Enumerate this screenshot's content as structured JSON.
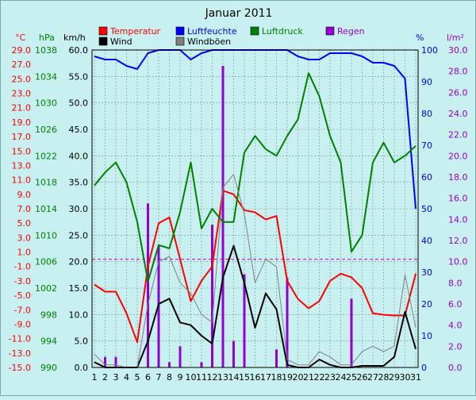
{
  "chart_data": {
    "type": "line",
    "title": "Januar 2011",
    "x": [
      1,
      2,
      3,
      4,
      5,
      6,
      7,
      8,
      9,
      10,
      11,
      12,
      13,
      14,
      15,
      16,
      17,
      18,
      19,
      20,
      21,
      22,
      23,
      24,
      25,
      26,
      27,
      28,
      29,
      30,
      31
    ],
    "axes": {
      "temperature": {
        "unit": "°C",
        "ylim": [
          -15.0,
          29.0
        ],
        "step": 4.0,
        "ticks": [
          "29.0",
          "27.0",
          "25.0",
          "23.0",
          "21.0",
          "19.0",
          "17.0",
          "15.0",
          "13.0",
          "11.0",
          "9.0",
          "7.0",
          "5.0",
          "3.0",
          "1.0",
          "-1.0",
          "-3.0",
          "-5.0",
          "-7.0",
          "-9.0",
          "-11.0",
          "-13.0",
          "-15.0"
        ]
      },
      "pressure": {
        "unit": "hPa",
        "ylim": [
          990,
          1038
        ],
        "ticks": [
          "1038",
          "1034",
          "1030",
          "1026",
          "1022",
          "1018",
          "1014",
          "1010",
          "1006",
          "1002",
          "998",
          "994",
          "990"
        ]
      },
      "wind": {
        "unit": "km/h",
        "ylim": [
          0.0,
          60.0
        ],
        "ticks": [
          "60.0",
          "55.0",
          "50.0",
          "45.0",
          "40.0",
          "35.0",
          "30.0",
          "25.0",
          "20.0",
          "15.0",
          "10.0",
          "5.0",
          "0.0"
        ]
      },
      "humidity": {
        "unit": "%",
        "ylim": [
          0,
          100
        ],
        "ticks": [
          "100",
          "90",
          "80",
          "70",
          "60",
          "50",
          "40",
          "30",
          "20",
          "10",
          "0"
        ]
      },
      "rain": {
        "unit": "l/m²",
        "ylim": [
          0.0,
          30.0
        ],
        "ticks": [
          "30.0",
          "28.0",
          "26.0",
          "24.0",
          "22.0",
          "20.0",
          "18.0",
          "16.0",
          "14.0",
          "12.0",
          "10.0",
          "8.0",
          "6.0",
          "4.0",
          "2.0",
          "0.0"
        ]
      }
    },
    "legend": [
      {
        "name": "Temperatur",
        "color": "#ff0000"
      },
      {
        "name": "Luftfeuchte",
        "color": "#0000ff"
      },
      {
        "name": "Luftdruck",
        "color": "#008000"
      },
      {
        "name": "Regen",
        "color": "#9400d3"
      },
      {
        "name": "Wind",
        "color": "#000000"
      },
      {
        "name": "Windböen",
        "color": "#808080"
      }
    ],
    "series": [
      {
        "name": "Temperatur",
        "axis": "temperature",
        "color": "#ff0000",
        "values": [
          -3.5,
          -4.5,
          -4.5,
          -7.5,
          -11.5,
          -1.0,
          5.0,
          5.8,
          0.0,
          -5.8,
          -3.0,
          -1.0,
          9.5,
          9.0,
          6.8,
          6.5,
          5.5,
          6.0,
          -3.0,
          -5.5,
          -6.8,
          -5.8,
          -3.0,
          -2.0,
          -2.5,
          -4.0,
          -7.5,
          -7.7,
          -7.8,
          -7.8,
          -2.0
        ]
      },
      {
        "name": "Luftfeuchte",
        "axis": "humidity",
        "color": "#0000ff",
        "values": [
          98,
          97,
          97,
          95,
          94,
          99,
          100,
          100,
          100,
          97,
          99,
          100,
          100,
          100,
          100,
          100,
          100,
          100,
          100,
          98,
          97,
          97,
          99,
          99,
          99,
          98,
          96,
          96,
          95,
          91,
          50
        ]
      },
      {
        "name": "Luftdruck",
        "axis": "pressure",
        "color": "#008000",
        "values": [
          1017.5,
          1019.5,
          1021,
          1018,
          1012,
          1003,
          1008.5,
          1008,
          1013.5,
          1021,
          1011,
          1014,
          1012,
          1012,
          1022.5,
          1025,
          1023,
          1022,
          1025,
          1027.5,
          1034.5,
          1031,
          1025,
          1021,
          1007.5,
          1010,
          1021,
          1024,
          1021,
          1022,
          1023.5
        ]
      },
      {
        "name": "Wind",
        "axis": "wind",
        "color": "#000000",
        "values": [
          1.0,
          0.0,
          0.0,
          0.0,
          0.0,
          5.0,
          12.0,
          13.0,
          8.5,
          8.0,
          6.0,
          4.5,
          17.0,
          23.0,
          16.0,
          7.5,
          14.0,
          11.0,
          0.5,
          0.0,
          0.0,
          1.5,
          0.5,
          0.0,
          0.0,
          0.3,
          0.3,
          0.3,
          2.0,
          10.5,
          3.5
        ]
      },
      {
        "name": "Windböen",
        "axis": "wind",
        "color": "#808080",
        "values": [
          2.5,
          0.5,
          0.5,
          0.0,
          0.0,
          12.0,
          20.0,
          21.0,
          16.0,
          14.0,
          10.0,
          8.5,
          34.0,
          36.5,
          29.0,
          16.0,
          20.5,
          19.0,
          1.5,
          0.5,
          0.5,
          3.0,
          2.0,
          0.5,
          0.5,
          3.0,
          4.0,
          3.0,
          4.0,
          17.5,
          7.5
        ]
      },
      {
        "name": "Regen",
        "axis": "rain",
        "color": "#9400d3",
        "style": "bars",
        "values": [
          0,
          1.0,
          1.0,
          0,
          0,
          15.5,
          11.5,
          0.5,
          2.0,
          0,
          0.5,
          13.5,
          28.5,
          2.5,
          8.8,
          0,
          0,
          1.7,
          8.5,
          0,
          0,
          0,
          0,
          0,
          6.5,
          0,
          0,
          0,
          0,
          0,
          0
        ]
      }
    ],
    "reference_lines": [
      {
        "axis": "temperature",
        "value": 0.0,
        "color": "#c800c8",
        "style": "dashed"
      }
    ],
    "grid": true
  }
}
